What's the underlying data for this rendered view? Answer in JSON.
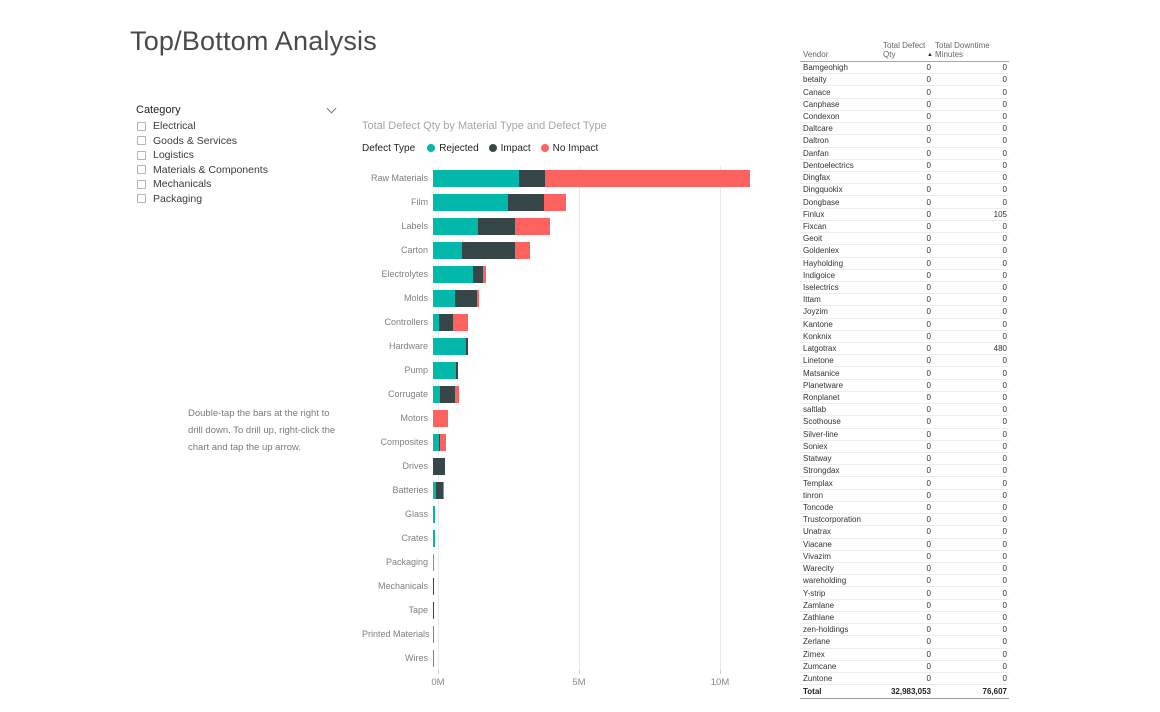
{
  "page_title": "Top/Bottom Analysis",
  "slicer": {
    "title": "Category",
    "items": [
      {
        "label": "Electrical",
        "checked": false
      },
      {
        "label": "Goods & Services",
        "checked": false
      },
      {
        "label": "Logistics",
        "checked": false
      },
      {
        "label": "Materials & Components",
        "checked": false
      },
      {
        "label": "Mechanicals",
        "checked": false
      },
      {
        "label": "Packaging",
        "checked": false
      }
    ]
  },
  "textbox": {
    "text": "Double-tap the bars at the right to drill down. To drill up, right-click the chart and tap the up arrow."
  },
  "chart_data": {
    "type": "bar",
    "orientation": "horizontal",
    "stacked": true,
    "title": "Total Defect Qty by Material Type and Defect Type",
    "legend_title": "Defect Type",
    "legend_position": "top",
    "unit": "millions",
    "xlim": [
      0,
      11.5
    ],
    "x_ticks": [
      {
        "label": "0M",
        "value": 0
      },
      {
        "label": "5M",
        "value": 5
      },
      {
        "label": "10M",
        "value": 10
      }
    ],
    "categories": [
      "Raw Materials",
      "Film",
      "Labels",
      "Carton",
      "Electrolytes",
      "Molds",
      "Controllers",
      "Hardware",
      "Pump",
      "Corrugate",
      "Motors",
      "Composites",
      "Drives",
      "Batteries",
      "Glass",
      "Crates",
      "Packaging",
      "Mechanicals",
      "Tape",
      "Printed Materials",
      "Wires"
    ],
    "series": [
      {
        "name": "Rejected",
        "color": "#01B8AA",
        "values": [
          3.05,
          2.65,
          1.59,
          1.03,
          1.41,
          0.78,
          0.21,
          1.17,
          0.81,
          0.25,
          0,
          0.21,
          0,
          0.11,
          0.08,
          0.07,
          0,
          0,
          0,
          0.012,
          0.006
        ]
      },
      {
        "name": "Impact",
        "color": "#374649",
        "values": [
          0.92,
          1.27,
          1.31,
          1.87,
          0.35,
          0.78,
          0.49,
          0.07,
          0.07,
          0.53,
          0,
          0.04,
          0.42,
          0.25,
          0,
          0,
          0,
          0.025,
          0.025,
          0,
          0
        ]
      },
      {
        "name": "No Impact",
        "color": "#FD625E",
        "values": [
          7.28,
          0.81,
          1.24,
          0.53,
          0.11,
          0.07,
          0.53,
          0,
          0,
          0.14,
          0.53,
          0.21,
          0,
          0.04,
          0,
          0,
          0.03,
          0,
          0,
          0,
          0
        ]
      }
    ]
  },
  "table": {
    "columns": [
      {
        "label": "Vendor",
        "sorted": false
      },
      {
        "label": "Total Defect Qty",
        "sorted": true,
        "sort_direction": "asc",
        "sort_icon": "▲"
      },
      {
        "label": "Total Downtime Minutes",
        "sorted": false
      }
    ],
    "rows": [
      [
        "Bamgeohigh",
        "0",
        "0"
      ],
      [
        "betaity",
        "0",
        "0"
      ],
      [
        "Canace",
        "0",
        "0"
      ],
      [
        "Canphase",
        "0",
        "0"
      ],
      [
        "Condexon",
        "0",
        "0"
      ],
      [
        "Daltcare",
        "0",
        "0"
      ],
      [
        "Daltron",
        "0",
        "0"
      ],
      [
        "Danfan",
        "0",
        "0"
      ],
      [
        "Dentoelectrics",
        "0",
        "0"
      ],
      [
        "Dingfax",
        "0",
        "0"
      ],
      [
        "Dingquokix",
        "0",
        "0"
      ],
      [
        "Dongbase",
        "0",
        "0"
      ],
      [
        "Finlux",
        "0",
        "105"
      ],
      [
        "Fixcan",
        "0",
        "0"
      ],
      [
        "Geoit",
        "0",
        "0"
      ],
      [
        "Goldenlex",
        "0",
        "0"
      ],
      [
        "Hayholding",
        "0",
        "0"
      ],
      [
        "Indigoice",
        "0",
        "0"
      ],
      [
        "Iselectrics",
        "0",
        "0"
      ],
      [
        "Ittam",
        "0",
        "0"
      ],
      [
        "Joyzim",
        "0",
        "0"
      ],
      [
        "Kantone",
        "0",
        "0"
      ],
      [
        "Konknix",
        "0",
        "0"
      ],
      [
        "Latgotrax",
        "0",
        "480"
      ],
      [
        "Linetone",
        "0",
        "0"
      ],
      [
        "Matsanice",
        "0",
        "0"
      ],
      [
        "Planetware",
        "0",
        "0"
      ],
      [
        "Ronplanet",
        "0",
        "0"
      ],
      [
        "saltlab",
        "0",
        "0"
      ],
      [
        "Scothouse",
        "0",
        "0"
      ],
      [
        "Silver-line",
        "0",
        "0"
      ],
      [
        "Soniex",
        "0",
        "0"
      ],
      [
        "Statway",
        "0",
        "0"
      ],
      [
        "Strongdax",
        "0",
        "0"
      ],
      [
        "Templax",
        "0",
        "0"
      ],
      [
        "tinron",
        "0",
        "0"
      ],
      [
        "Toncode",
        "0",
        "0"
      ],
      [
        "Trustcorporation",
        "0",
        "0"
      ],
      [
        "Unatrax",
        "0",
        "0"
      ],
      [
        "Viacane",
        "0",
        "0"
      ],
      [
        "Vivazim",
        "0",
        "0"
      ],
      [
        "Warecity",
        "0",
        "0"
      ],
      [
        "wareholding",
        "0",
        "0"
      ],
      [
        "Y-strip",
        "0",
        "0"
      ],
      [
        "Zamlane",
        "0",
        "0"
      ],
      [
        "Zathlane",
        "0",
        "0"
      ],
      [
        "zen-holdings",
        "0",
        "0"
      ],
      [
        "Zerlane",
        "0",
        "0"
      ],
      [
        "Zimex",
        "0",
        "0"
      ],
      [
        "Zumcane",
        "0",
        "0"
      ],
      [
        "Zuntone",
        "0",
        "0"
      ]
    ],
    "total_row": [
      "Total",
      "32,983,053",
      "76,607"
    ]
  }
}
